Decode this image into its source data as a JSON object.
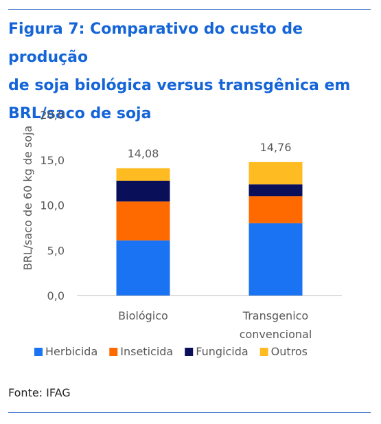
{
  "figure": {
    "title_lines": [
      "Figura 7: Comparativo do custo de produção",
      "de soja biológica versus transgênica em",
      "BRL/saco de soja"
    ],
    "source": "Fonte: IFAG"
  },
  "chart_data": {
    "type": "bar",
    "stacked": true,
    "categories": [
      [
        "Biológico"
      ],
      [
        "Transgenico",
        "convencional"
      ]
    ],
    "series": [
      {
        "name": "Herbicida",
        "color": "#1a73f2",
        "values": [
          6.1,
          8.0
        ]
      },
      {
        "name": "Inseticida",
        "color": "#ff6a00",
        "values": [
          4.3,
          3.0
        ]
      },
      {
        "name": "Fungicida",
        "color": "#0a0f5a",
        "values": [
          2.3,
          1.3
        ]
      },
      {
        "name": "Outros",
        "color": "#ffbb22",
        "values": [
          1.38,
          2.46
        ]
      }
    ],
    "totals": [
      "14,08",
      "14,76"
    ],
    "ylabel": "BRL/saco de 60 kg de soja",
    "ylim": [
      0,
      20
    ],
    "yticks": [
      "0,0",
      "5,0",
      "10,0",
      "15,0",
      "20,0"
    ],
    "grid": false,
    "legend_position": "bottom"
  }
}
